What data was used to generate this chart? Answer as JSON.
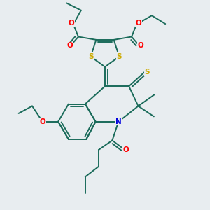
{
  "bg_color": "#e8edf0",
  "bond_color": "#1a6b5a",
  "bond_width": 1.4,
  "atom_colors": {
    "O": "#ff0000",
    "S": "#ccaa00",
    "N": "#0000dd",
    "C": "#1a6b5a"
  },
  "figsize": [
    3.0,
    3.0
  ],
  "dpi": 100
}
